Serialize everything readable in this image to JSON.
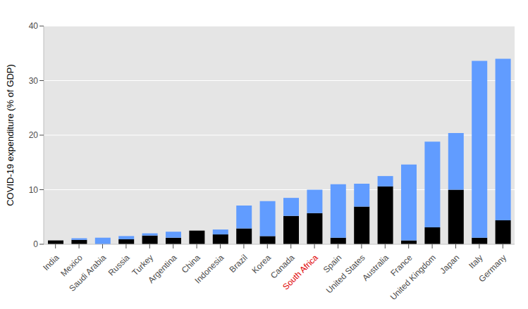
{
  "chart_data": {
    "type": "bar",
    "y_label": "COVID-19 expenditure (% of GDP)",
    "categories": [
      "India",
      "Mexico",
      "Saudi Arabia",
      "Russia",
      "Turkey",
      "Argentina",
      "China",
      "Indonesia",
      "Brazil",
      "Korea",
      "Canada",
      "South Africa",
      "Spain",
      "United States",
      "Australia",
      "France",
      "United Kingdom",
      "Japan",
      "Italy",
      "Germany"
    ],
    "series": [
      {
        "color": "#000000",
        "values": [
          0.7,
          0.8,
          0,
          0.9,
          1.6,
          1.2,
          2.5,
          1.8,
          2.9,
          1.5,
          5.2,
          5.7,
          1.2,
          6.9,
          10.6,
          0.7,
          3.1,
          10.0,
          1.2,
          4.4
        ]
      },
      {
        "color": "#619cff",
        "values": [
          0,
          0.3,
          1.2,
          0.6,
          0.4,
          1.1,
          0,
          0.9,
          4.2,
          6.4,
          3.3,
          4.3,
          9.8,
          4.2,
          1.9,
          13.9,
          15.7,
          10.4,
          32.4,
          29.6
        ]
      }
    ],
    "ylim": [
      0,
      40
    ],
    "yticks": [
      0,
      10,
      20,
      30,
      40
    ],
    "stacked": true,
    "grid": true
  }
}
